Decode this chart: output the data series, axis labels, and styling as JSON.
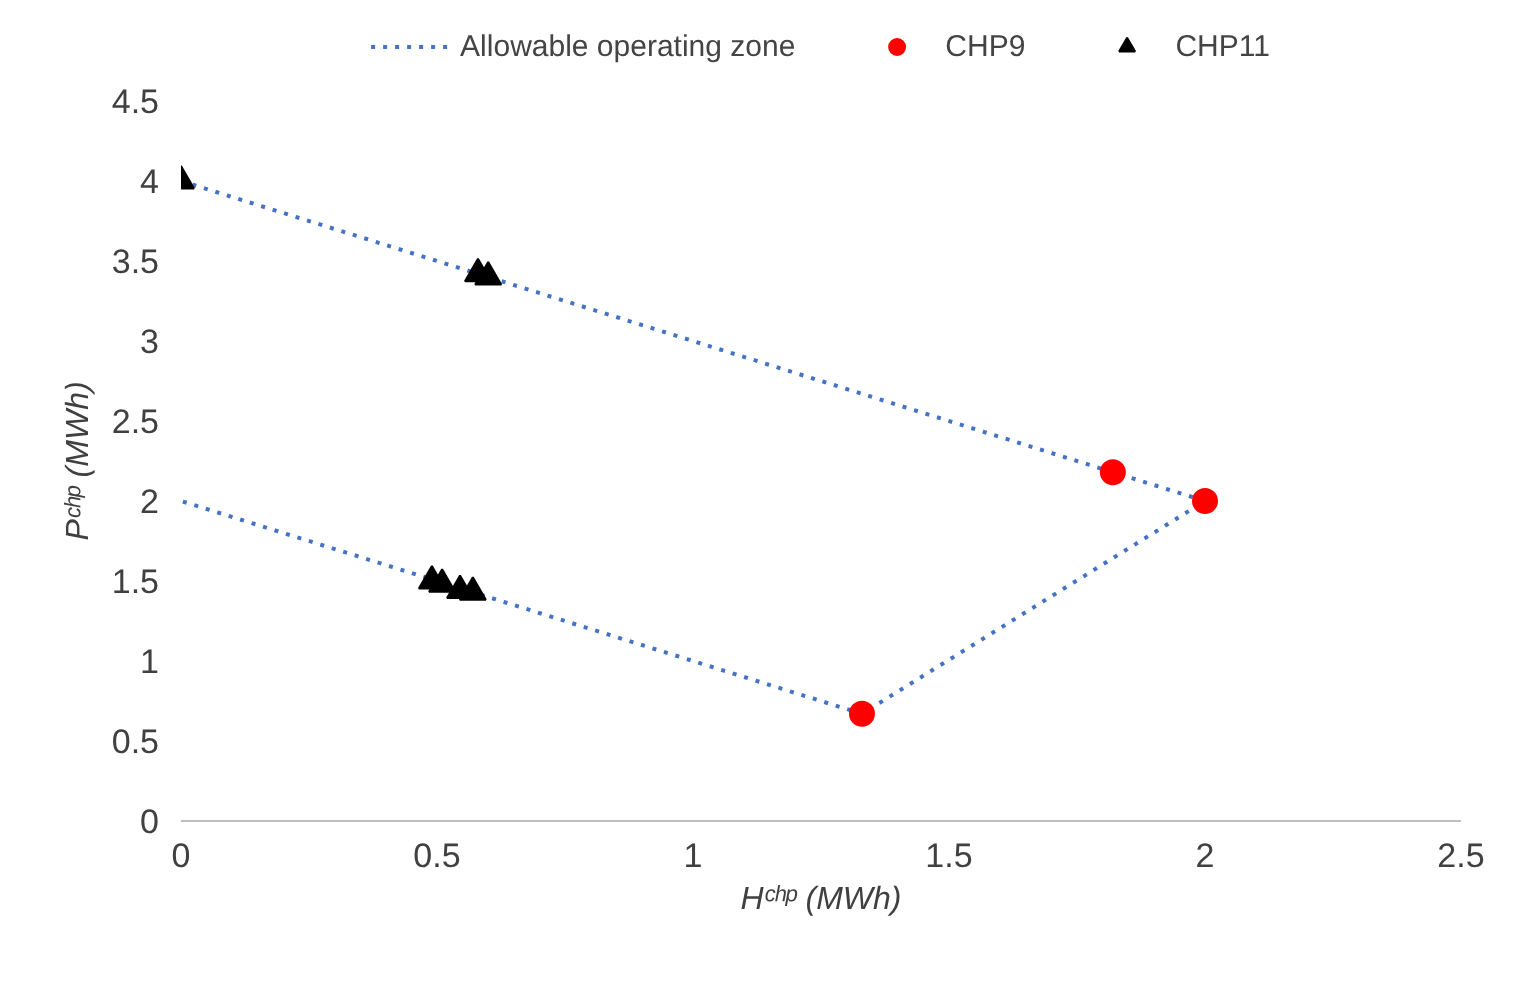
{
  "chart_data": {
    "type": "scatter",
    "xlabel": "Hᶜʰᵖ (MWh)",
    "ylabel": "Pᶜʰᵖ (MWh)",
    "xlim": [
      0,
      2.5
    ],
    "xticks": [
      0,
      0.5,
      1,
      1.5,
      2,
      2.5
    ],
    "ylim": [
      0,
      4.5
    ],
    "yticks": [
      0,
      0.5,
      1,
      1.5,
      2,
      2.5,
      3,
      3.5,
      4,
      4.5
    ],
    "grid": false,
    "legend": "top",
    "series": [
      {
        "name": "Allowable operating zone",
        "type": "line",
        "color": "#4472c4",
        "line_style": "dotted",
        "marker": "none",
        "x": [
          0,
          2,
          1.33,
          0
        ],
        "values": [
          4,
          2,
          0.67,
          2
        ]
      },
      {
        "name": "CHP9",
        "color": "#ff0000",
        "marker": "circle",
        "x": [
          1.82,
          2,
          1.33
        ],
        "values": [
          2.18,
          2,
          0.67
        ]
      },
      {
        "name": "CHP11",
        "color": "#000000",
        "marker": "triangle",
        "x": [
          0,
          0.58,
          0.6,
          0.49,
          0.51,
          0.545,
          0.57
        ],
        "values": [
          4,
          3.42,
          3.4,
          1.5,
          1.48,
          1.44,
          1.43
        ]
      }
    ]
  }
}
